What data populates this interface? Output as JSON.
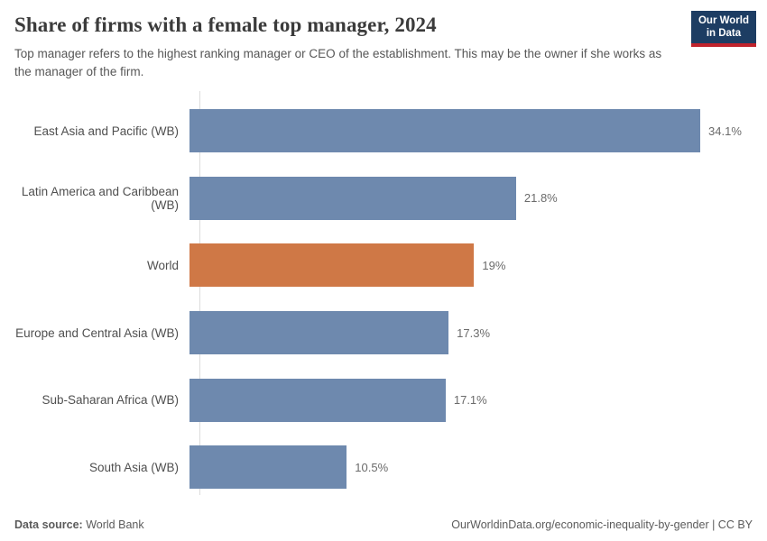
{
  "header": {
    "title": "Share of firms with a female top manager, 2024",
    "subtitle": "Top manager refers to the highest ranking manager or CEO of the establishment. This may be the owner if she works as the manager of the firm.",
    "logo": {
      "line1": "Our World",
      "line2": "in Data"
    }
  },
  "chart_data": {
    "type": "bar",
    "orientation": "horizontal",
    "title": "Share of firms with a female top manager, 2024",
    "xlabel": "",
    "ylabel": "",
    "xlim": [
      0,
      35
    ],
    "grid": false,
    "legend": false,
    "unit": "%",
    "categories": [
      "East Asia and Pacific (WB)",
      "Latin America and Caribbean (WB)",
      "World",
      "Europe and Central Asia (WB)",
      "Sub-Saharan Africa (WB)",
      "South Asia (WB)"
    ],
    "values": [
      34.1,
      21.8,
      19,
      17.3,
      17.1,
      10.5
    ],
    "value_labels": [
      "34.1%",
      "21.8%",
      "19%",
      "17.3%",
      "17.1%",
      "10.5%"
    ],
    "highlight_category": "World",
    "bar_colors": [
      "#6e89ae",
      "#6e89ae",
      "#cf7846",
      "#6e89ae",
      "#6e89ae",
      "#6e89ae"
    ]
  },
  "colors": {
    "default_bar": "#6e89ae",
    "highlight_bar": "#cf7846",
    "logo_navy": "#1d3d63",
    "logo_red": "#c0232c",
    "axis_line": "#dcdcdc"
  },
  "footer": {
    "datasource_label": "Data source:",
    "datasource_value": "World Bank",
    "link_text": "OurWorldinData.org/economic-inequality-by-gender | CC BY"
  }
}
